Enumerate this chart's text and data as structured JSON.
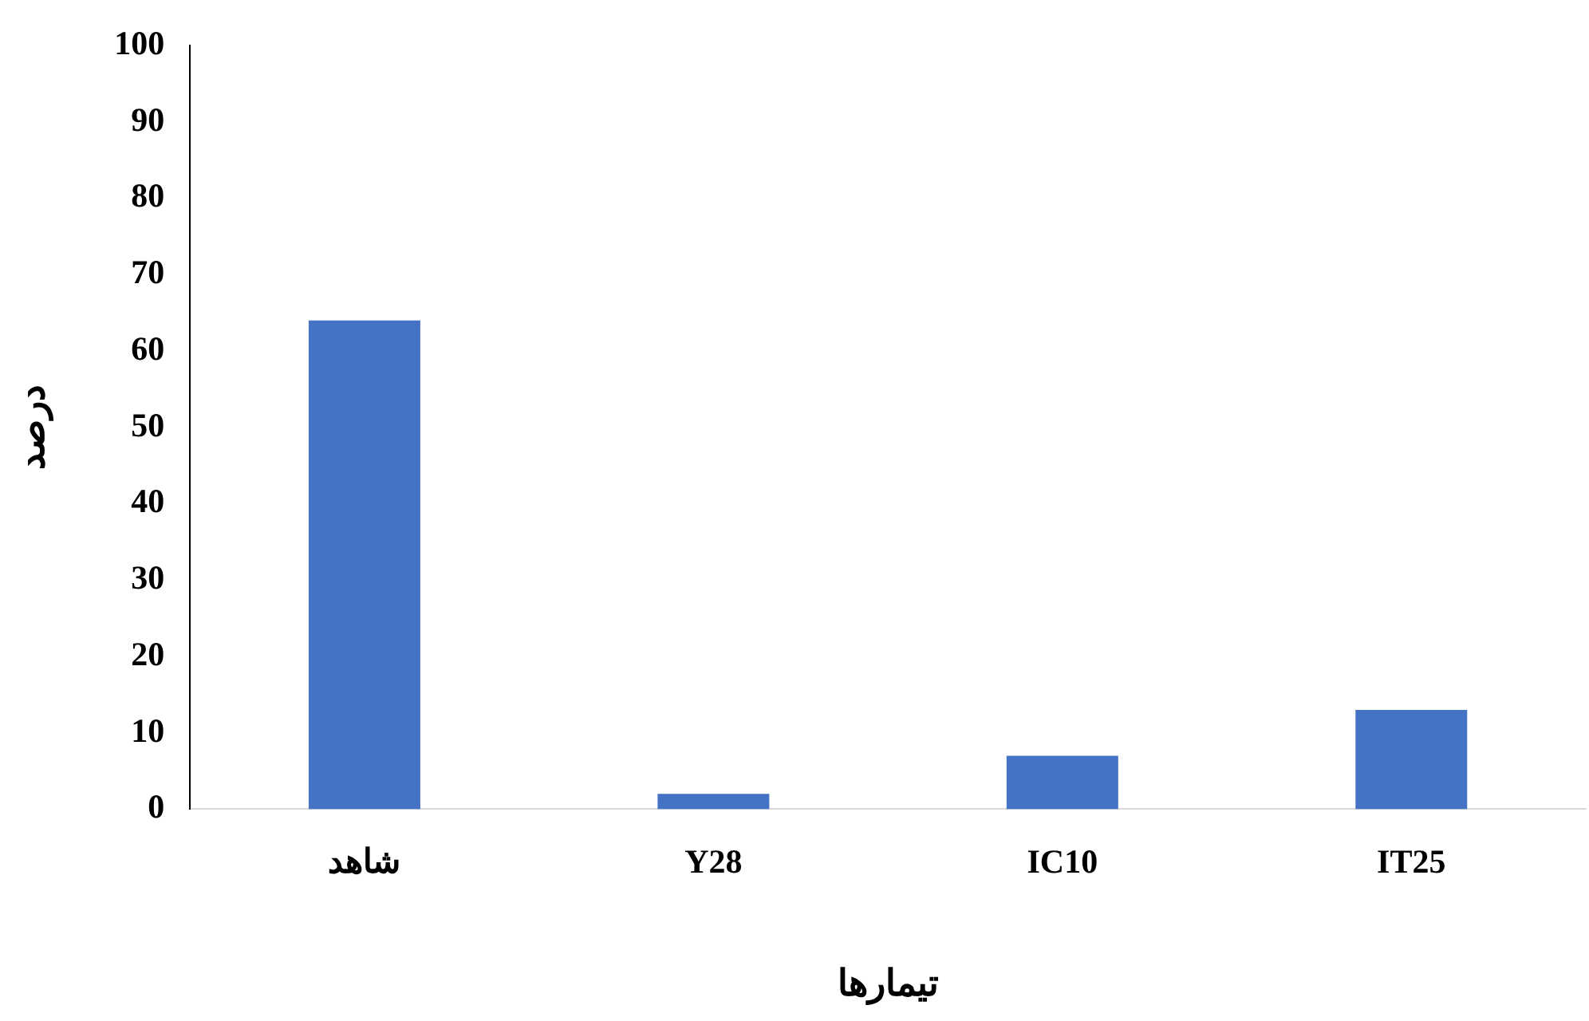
{
  "chart_data": {
    "type": "bar",
    "xlabel": "تیمارها",
    "ylabel": "درصد",
    "categories": [
      "شاهد",
      "Y28",
      "IC10",
      "IT25"
    ],
    "values": [
      64,
      2,
      7,
      13
    ],
    "color": "#4472c4",
    "ylim": [
      0,
      100
    ],
    "yticks": [
      0,
      10,
      20,
      30,
      40,
      50,
      60,
      70,
      80,
      90,
      100
    ],
    "grid": false,
    "legend": false
  }
}
